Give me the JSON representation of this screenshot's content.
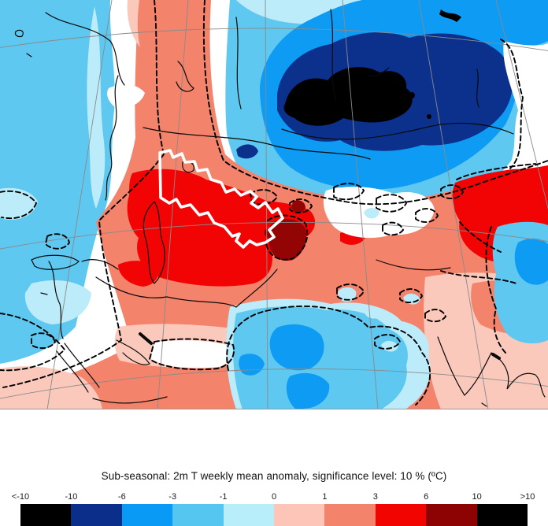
{
  "header": {
    "title": "Sub-seasonal: 2m T weekly mean anomaly, significance level: 10 % (ºC)"
  },
  "colorbar": {
    "units": "ºC",
    "labels": [
      "<-10",
      "-10",
      "-6",
      "-3",
      "-1",
      "0",
      "1",
      "3",
      "6",
      "10",
      ">10"
    ],
    "segments": [
      {
        "range": "< -10",
        "color": "#000000"
      },
      {
        "range": "-10 to -6",
        "color": "#0b2e8b"
      },
      {
        "range": "-6 to -3",
        "color": "#089af5"
      },
      {
        "range": "-3 to -1",
        "color": "#55c6ef"
      },
      {
        "range": "-1 to 0",
        "color": "#b8eefa"
      },
      {
        "range": "0 to 1",
        "color": "#fcc5b7"
      },
      {
        "range": "1 to 3",
        "color": "#f4836c"
      },
      {
        "range": "3 to 6",
        "color": "#f20400"
      },
      {
        "range": "6 to 10",
        "color": "#8d0303"
      },
      {
        "range": "> 10",
        "color": "#000000"
      }
    ]
  },
  "map": {
    "palette": {
      "black": "#000000",
      "navy": "#0c318d",
      "blue": "#0d9bf4",
      "skyblue": "#5ec8f0",
      "paleblue": "#bcebf9",
      "palepink": "#fbc9bc",
      "salmon": "#f4836c",
      "red": "#f20404",
      "darkred": "#930404",
      "graticule": "#8a8a8a",
      "coast": "#0a0a0a",
      "frame": "#999999"
    }
  }
}
